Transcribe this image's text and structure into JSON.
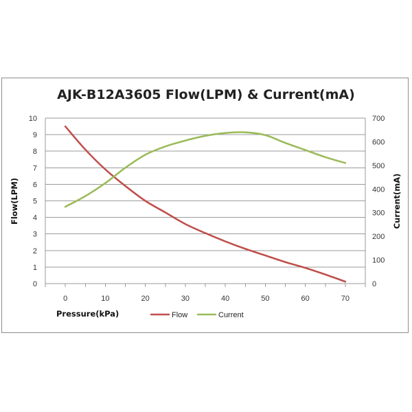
{
  "chart_data": {
    "type": "line",
    "title": "AJK-B12A3605 Flow(LPM) & Current(mA)",
    "xlabel": "Pressure(kPa)",
    "ylabel": "Flow(LPM)",
    "y2label": "Current(mA)",
    "x_ticks": [
      0,
      10,
      20,
      30,
      40,
      50,
      60,
      70
    ],
    "xlim": [
      -5,
      75
    ],
    "ylim": [
      0,
      10
    ],
    "y_ticks": [
      0,
      1,
      2,
      3,
      4,
      5,
      6,
      7,
      8,
      9,
      10
    ],
    "y2lim": [
      0,
      700
    ],
    "y2_ticks": [
      0,
      100,
      200,
      300,
      400,
      500,
      600,
      700
    ],
    "grid": true,
    "legend": "bottom",
    "series": [
      {
        "name": "Flow",
        "axis": "left",
        "color": "#c0504d",
        "x": [
          0,
          5,
          10,
          15,
          20,
          25,
          30,
          35,
          40,
          45,
          50,
          55,
          60,
          65,
          70
        ],
        "values": [
          9.5,
          8.1,
          6.9,
          5.9,
          5.0,
          4.3,
          3.6,
          3.05,
          2.55,
          2.1,
          1.7,
          1.3,
          0.95,
          0.55,
          0.12
        ]
      },
      {
        "name": "Current",
        "axis": "right",
        "color": "#9bbb59",
        "x": [
          0,
          5,
          10,
          15,
          20,
          25,
          30,
          35,
          40,
          45,
          50,
          55,
          60,
          65,
          70
        ],
        "values": [
          325,
          370,
          425,
          490,
          545,
          580,
          605,
          625,
          637,
          640,
          628,
          595,
          565,
          535,
          510
        ]
      }
    ]
  }
}
